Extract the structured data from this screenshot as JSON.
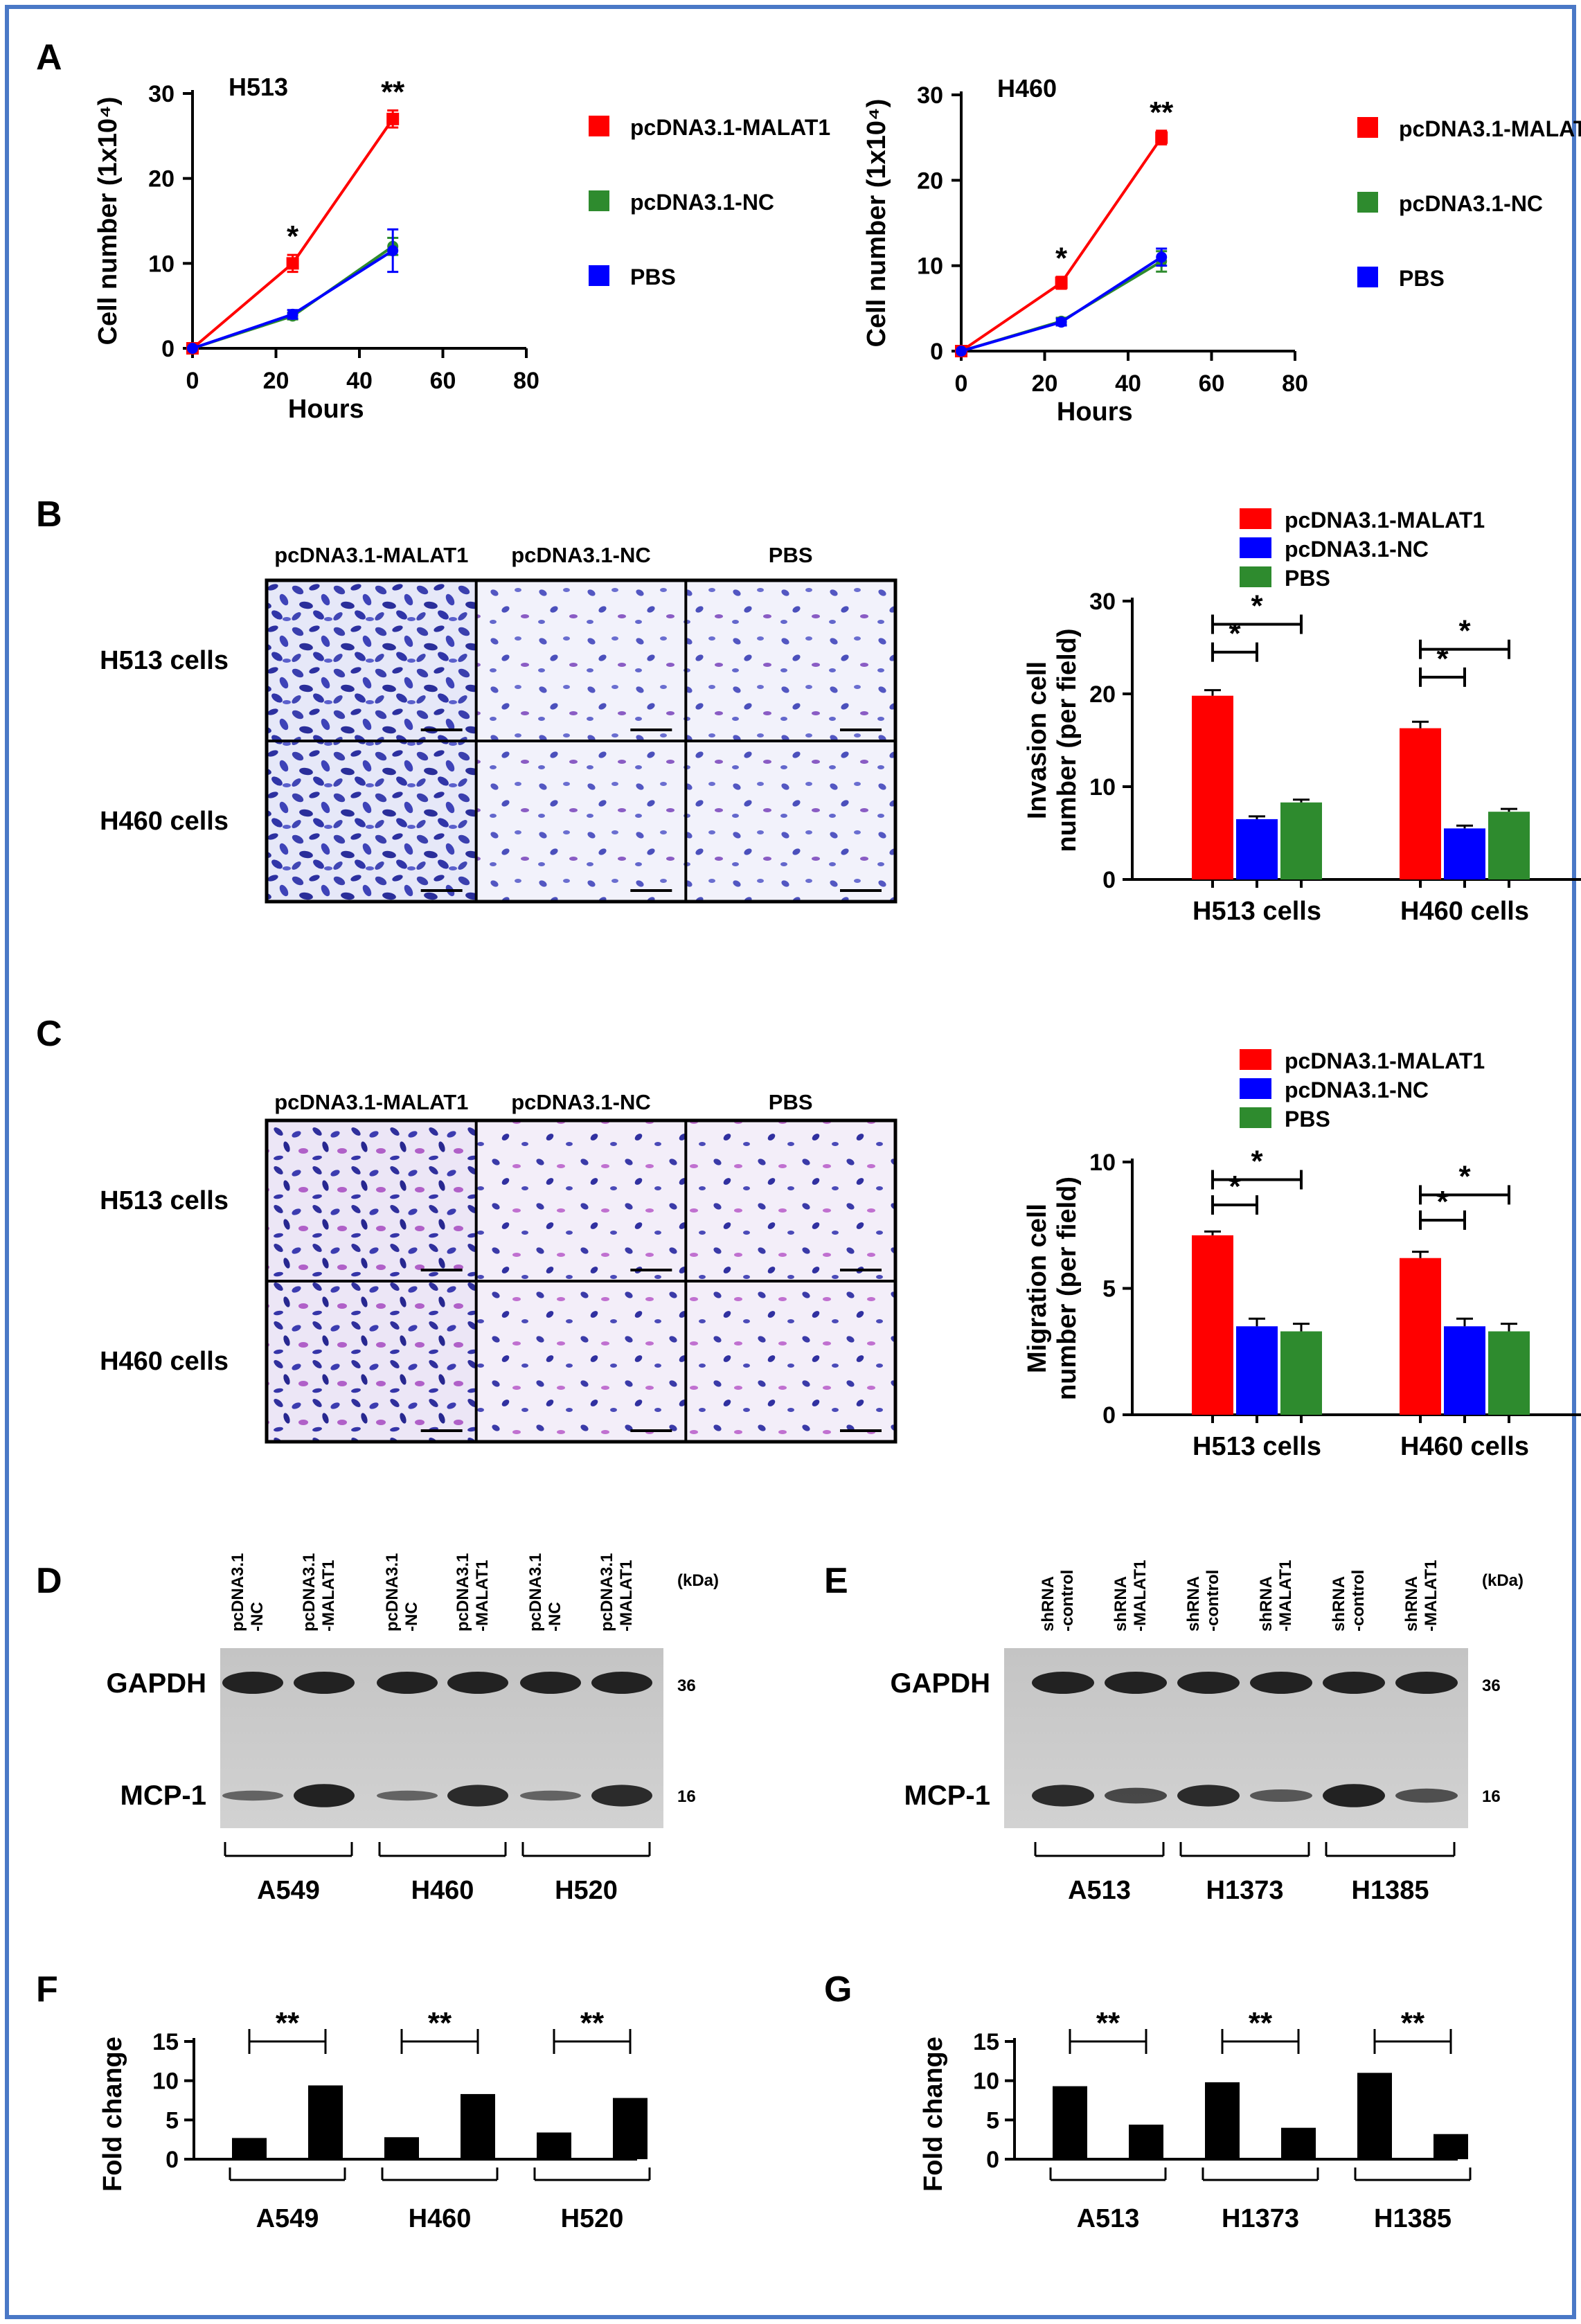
{
  "panel_letters": [
    "A",
    "B",
    "C",
    "D",
    "E",
    "F",
    "G"
  ],
  "legend_line": [
    "pcDNA3.1-MALAT1",
    "pcDNA3.1-NC",
    "PBS"
  ],
  "legend_bar": [
    "pcDNA3.1-MALAT1",
    "pcDNA3.1-NC",
    "PBS"
  ],
  "micro": {
    "col_labels": [
      "pcDNA3.1-MALAT1",
      "pcDNA3.1-NC",
      "PBS"
    ],
    "row_labels": [
      "H513 cells",
      "H460 cells"
    ]
  },
  "blot_D": {
    "lanes": [
      "pcDNA3.1\n-NC",
      "pcDNA3.1\n-MALAT1",
      "pcDNA3.1\n-NC",
      "pcDNA3.1\n-MALAT1",
      "pcDNA3.1\n-NC",
      "pcDNA3.1\n-MALAT1"
    ],
    "rows": [
      "GAPDH",
      "MCP-1"
    ],
    "kda_label": "(kDa)",
    "kda": [
      "36",
      "16"
    ],
    "groups": [
      "A549",
      "H460",
      "H520"
    ]
  },
  "blot_E": {
    "lanes": [
      "shRNA\n-control",
      "shRNA\n-MALAT1",
      "shRNA\n-control",
      "shRNA\n-MALAT1",
      "shRNA\n-control",
      "shRNA\n-MALAT1"
    ],
    "rows": [
      "GAPDH",
      "MCP-1"
    ],
    "kda_label": "(kDa)",
    "kda": [
      "36",
      "16"
    ],
    "groups": [
      "A513",
      "H1373",
      "H1385"
    ]
  },
  "colors": {
    "red": "#ff0000",
    "green": "#2e8b2e",
    "blue": "#0000ff",
    "black": "#000000",
    "border": "#4a78c6"
  },
  "chart_data": [
    {
      "id": "A1",
      "type": "line",
      "title": "H513",
      "xlabel": "Hours",
      "ylabel": "Cell number (1x10⁴)",
      "xlim": [
        0,
        80
      ],
      "ylim": [
        0,
        30
      ],
      "xticks": [
        0,
        20,
        40,
        60,
        80
      ],
      "yticks": [
        0,
        10,
        20,
        30
      ],
      "x": [
        0,
        24,
        48
      ],
      "series": [
        {
          "name": "pcDNA3.1-MALAT1",
          "values": [
            0,
            10,
            27
          ],
          "err": [
            0,
            1,
            1
          ]
        },
        {
          "name": "pcDNA3.1-NC",
          "values": [
            0,
            3.8,
            12
          ],
          "err": [
            0,
            0.4,
            1
          ]
        },
        {
          "name": "PBS",
          "values": [
            0,
            4,
            11.5
          ],
          "err": [
            0,
            0.5,
            2.5
          ]
        }
      ],
      "annotations": [
        {
          "x": 24,
          "text": "*"
        },
        {
          "x": 48,
          "text": "**"
        }
      ]
    },
    {
      "id": "A2",
      "type": "line",
      "title": "H460",
      "xlabel": "Hours",
      "ylabel": "Cell number (1x10⁴)",
      "xlim": [
        0,
        80
      ],
      "ylim": [
        0,
        30
      ],
      "xticks": [
        0,
        20,
        40,
        60,
        80
      ],
      "yticks": [
        0,
        10,
        20,
        30
      ],
      "x": [
        0,
        24,
        48
      ],
      "series": [
        {
          "name": "pcDNA3.1-MALAT1",
          "values": [
            0,
            8,
            25
          ],
          "err": [
            0,
            0.7,
            0.8
          ]
        },
        {
          "name": "pcDNA3.1-NC",
          "values": [
            0,
            3.5,
            10.5
          ],
          "err": [
            0,
            0.4,
            1.2
          ]
        },
        {
          "name": "PBS",
          "values": [
            0,
            3.4,
            11
          ],
          "err": [
            0,
            0.4,
            1
          ]
        }
      ],
      "annotations": [
        {
          "x": 24,
          "text": "*"
        },
        {
          "x": 48,
          "text": "**"
        }
      ]
    },
    {
      "id": "B",
      "type": "bar",
      "ylabel": "Invasion cell\nnumber (per field)",
      "categories": [
        "H513 cells",
        "H460 cells"
      ],
      "ylim": [
        0,
        30
      ],
      "yticks": [
        0,
        10,
        20,
        30
      ],
      "series": [
        {
          "name": "pcDNA3.1-MALAT1",
          "values": [
            19.8,
            16.3
          ],
          "err": [
            0.6,
            0.7
          ]
        },
        {
          "name": "pcDNA3.1-NC",
          "values": [
            6.5,
            5.5
          ],
          "err": [
            0.3,
            0.3
          ]
        },
        {
          "name": "PBS",
          "values": [
            8.3,
            7.3
          ],
          "err": [
            0.3,
            0.3
          ]
        }
      ],
      "brackets": [
        {
          "cat": 0,
          "from": 0,
          "to": 1,
          "y": 24.5,
          "text": "*"
        },
        {
          "cat": 0,
          "from": 0,
          "to": 2,
          "y": 27.5,
          "text": "*"
        },
        {
          "cat": 1,
          "from": 0,
          "to": 1,
          "y": 21.8,
          "text": "*"
        },
        {
          "cat": 1,
          "from": 0,
          "to": 2,
          "y": 24.8,
          "text": "*"
        }
      ]
    },
    {
      "id": "C",
      "type": "bar",
      "ylabel": "Migration cell\nnumber (per field)",
      "categories": [
        "H513 cells",
        "H460 cells"
      ],
      "ylim": [
        0,
        10
      ],
      "yticks": [
        0,
        5,
        10
      ],
      "series": [
        {
          "name": "pcDNA3.1-MALAT1",
          "values": [
            7.1,
            6.2
          ],
          "err": [
            0.15,
            0.25
          ]
        },
        {
          "name": "pcDNA3.1-NC",
          "values": [
            3.5,
            3.5
          ],
          "err": [
            0.3,
            0.3
          ]
        },
        {
          "name": "PBS",
          "values": [
            3.3,
            3.3
          ],
          "err": [
            0.3,
            0.3
          ]
        }
      ],
      "brackets": [
        {
          "cat": 0,
          "from": 0,
          "to": 1,
          "y": 8.3,
          "text": "*"
        },
        {
          "cat": 0,
          "from": 0,
          "to": 2,
          "y": 9.3,
          "text": "*"
        },
        {
          "cat": 1,
          "from": 0,
          "to": 1,
          "y": 7.7,
          "text": "*"
        },
        {
          "cat": 1,
          "from": 0,
          "to": 2,
          "y": 8.7,
          "text": "*"
        }
      ]
    },
    {
      "id": "F",
      "type": "bar",
      "ylabel": "Fold change",
      "categories": [
        "A549",
        "H460",
        "H520"
      ],
      "ylim": [
        0,
        15
      ],
      "yticks": [
        0,
        5,
        10,
        15
      ],
      "values": [
        [
          2.7,
          9.4
        ],
        [
          2.8,
          8.3
        ],
        [
          3.4,
          7.8
        ]
      ],
      "annotations": [
        {
          "cat": 0,
          "text": "**"
        },
        {
          "cat": 1,
          "text": "**"
        },
        {
          "cat": 2,
          "text": "**"
        }
      ]
    },
    {
      "id": "G",
      "type": "bar",
      "ylabel": "Fold change",
      "categories": [
        "A513",
        "H1373",
        "H1385"
      ],
      "ylim": [
        0,
        15
      ],
      "yticks": [
        0,
        5,
        10,
        15
      ],
      "values": [
        [
          9.3,
          4.4
        ],
        [
          9.8,
          4
        ],
        [
          11,
          3.2
        ]
      ],
      "annotations": [
        {
          "cat": 0,
          "text": "**"
        },
        {
          "cat": 1,
          "text": "**"
        },
        {
          "cat": 2,
          "text": "**"
        }
      ]
    }
  ]
}
